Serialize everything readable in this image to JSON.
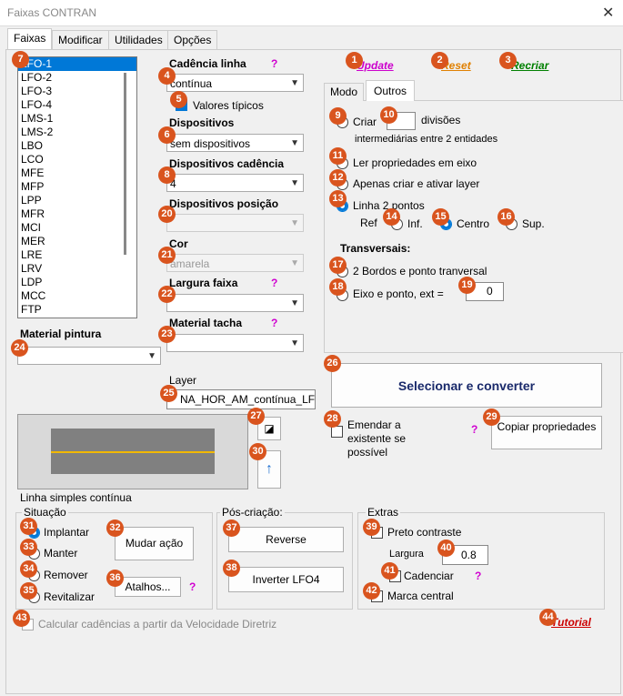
{
  "window": {
    "title": "Faixas CONTRAN"
  },
  "tabs": [
    "Faixas",
    "Modificar",
    "Utilidades",
    "Opções"
  ],
  "list": {
    "items": [
      "LFO-1",
      "LFO-2",
      "LFO-3",
      "LFO-4",
      "LMS-1",
      "LMS-2",
      "LBO",
      "LCO",
      "MFE",
      "MFP",
      "LPP",
      "MFR",
      "MCI",
      "MER",
      "LRE",
      "LRV",
      "LDP",
      "MCC",
      "FTP"
    ]
  },
  "cadencia": {
    "label": "Cadência linha",
    "value": "contínua",
    "valores_tipicos": "Valores típicos"
  },
  "dispositivos": {
    "label": "Dispositivos",
    "value": "sem dispositivos"
  },
  "disp_cadencia": {
    "label": "Dispositivos cadência",
    "value": "4"
  },
  "disp_posicao": {
    "label": "Dispositivos posição",
    "value": ""
  },
  "cor": {
    "label": "Cor",
    "value": "amarela"
  },
  "largura_faixa": {
    "label": "Largura faixa",
    "value": ""
  },
  "material_tacha": {
    "label": "Material tacha",
    "value": ""
  },
  "material_pintura": {
    "label": "Material pintura",
    "value": ""
  },
  "help": "?",
  "links": {
    "update": "Update",
    "reset": "Reset",
    "recriar": "Recriar",
    "tutorial": "Tutorial"
  },
  "subtabs": [
    "Modo",
    "Outros"
  ],
  "outros": {
    "criar": "Criar",
    "divisoes_value": "",
    "divisoes": "divisões",
    "intermed": "intermediárias entre 2 entidades",
    "ler": "Ler propriedades em eixo",
    "apenas": "Apenas criar e ativar layer",
    "linha2": "Linha 2 pontos",
    "ref": "Ref",
    "inf": "Inf.",
    "centro": "Centro",
    "sup": "Sup.",
    "transversais": "Transversais:",
    "bordos": "2 Bordos e ponto tranversal",
    "eixo": "Eixo e ponto, ext =",
    "ext_value": "0"
  },
  "layer": {
    "label": "Layer",
    "value": "NA_HOR_AM_contínua_LFO"
  },
  "selecionar": "Selecionar e converter",
  "emendar": "Emendar a existente se possível",
  "copiar": "Copiar propriedades",
  "preview_caption": "Linha simples contínua",
  "situacao": {
    "title": "Situação",
    "implantar": "Implantar",
    "manter": "Manter",
    "remover": "Remover",
    "revitalizar": "Revitalizar",
    "mudar": "Mudar ação",
    "atalhos": "Atalhos..."
  },
  "pos": {
    "title": "Pós-criação:",
    "reverse": "Reverse",
    "inverter": "Inverter LFO4"
  },
  "extras": {
    "title": "Extras",
    "preto": "Preto contraste",
    "largura": "Largura",
    "largura_value": "0.8",
    "cadenciar": "Cadenciar",
    "marca": "Marca central"
  },
  "calcular": "Calcular cadências a partir da Velocidade Diretriz",
  "colors": {
    "accent": "#0078d7",
    "badge": "#d9541e",
    "help": "#d000d0",
    "update": "#cc00cc",
    "reset": "#e08000",
    "recriar": "#008000",
    "tutorial": "#cc0000",
    "road_line": "#f2b800"
  },
  "badges": [
    "1",
    "2",
    "3",
    "4",
    "5",
    "6",
    "7",
    "8",
    "9",
    "10",
    "11",
    "12",
    "13",
    "14",
    "15",
    "16",
    "17",
    "18",
    "19",
    "20",
    "21",
    "22",
    "23",
    "24",
    "25",
    "26",
    "27",
    "28",
    "29",
    "30",
    "31",
    "32",
    "33",
    "34",
    "35",
    "36",
    "37",
    "38",
    "39",
    "40",
    "41",
    "42",
    "43",
    "44"
  ]
}
